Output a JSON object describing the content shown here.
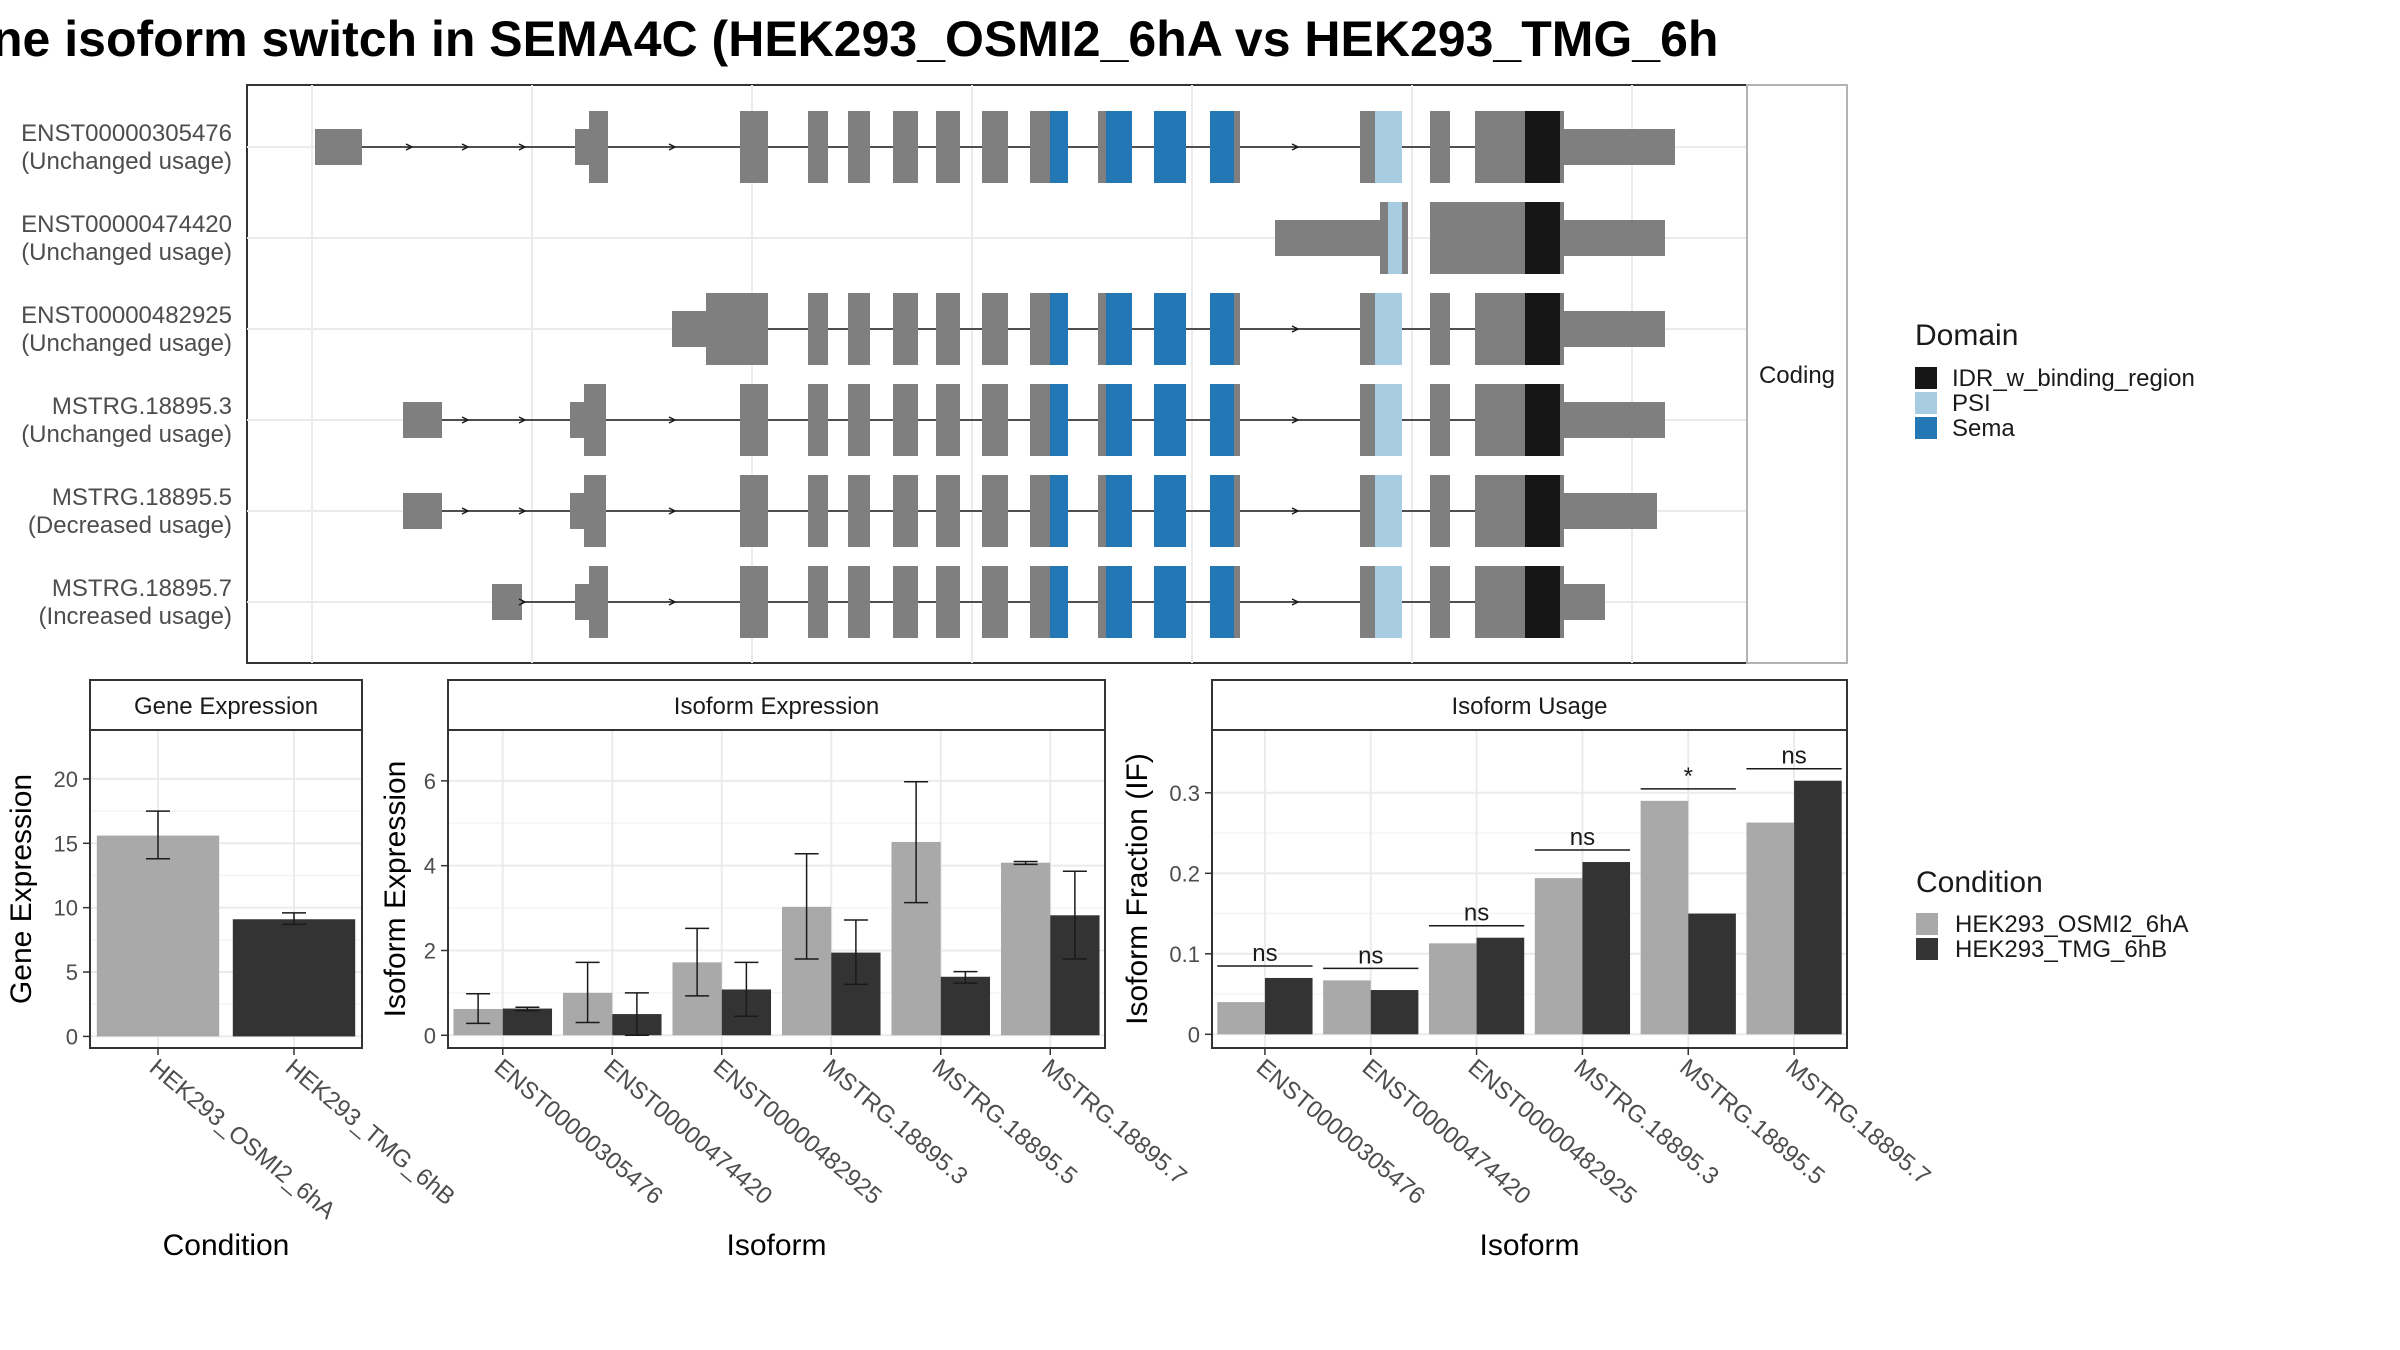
{
  "title": "ne isoform switch in SEMA4C (HEK293_OSMI2_6hA vs HEK293_TMG_6h",
  "colors": {
    "sema": "#2277b4",
    "psi": "#a8cde3",
    "idr": "#161616",
    "exon": "#7f7f7f",
    "cond1": "#a9a9a9",
    "cond2": "#333333",
    "panel_border": "#333333",
    "strip_bg": "#ffffff",
    "grid": "#ebebeb"
  },
  "structure": {
    "strip_label": "Coding",
    "transcripts": [
      {
        "id": "ENST00000305476",
        "status": "(Unchanged usage)"
      },
      {
        "id": "ENST00000474420",
        "status": "(Unchanged usage)"
      },
      {
        "id": "ENST00000482925",
        "status": "(Unchanged usage)"
      },
      {
        "id": "MSTRG.18895.3",
        "status": "(Unchanged usage)"
      },
      {
        "id": "MSTRG.18895.5",
        "status": "(Decreased usage)"
      },
      {
        "id": "MSTRG.18895.7",
        "status": "(Increased usage)"
      }
    ]
  },
  "domain_legend": {
    "title": "Domain",
    "items": [
      {
        "label": "IDR_w_binding_region",
        "color": "#161616"
      },
      {
        "label": "PSI",
        "color": "#a8cde3"
      },
      {
        "label": "Sema",
        "color": "#2277b4"
      }
    ]
  },
  "condition_legend": {
    "title": "Condition",
    "items": [
      {
        "label": "HEK293_OSMI2_6hA",
        "color": "#a9a9a9"
      },
      {
        "label": "HEK293_TMG_6hB",
        "color": "#333333"
      }
    ]
  },
  "chart_data": [
    {
      "type": "bar",
      "title": "Gene Expression",
      "xlabel": "Condition",
      "ylabel": "Gene Expression",
      "categories": [
        "HEK293_OSMI2_6hA",
        "HEK293_TMG_6hB"
      ],
      "values": [
        15.6,
        9.1
      ],
      "errors": [
        [
          13.8,
          17.5
        ],
        [
          8.7,
          9.6
        ]
      ],
      "yticks": [
        0,
        5,
        10,
        15,
        20
      ],
      "ylim": [
        -0.9,
        23.8
      ],
      "grid": true
    },
    {
      "type": "bar",
      "title": "Isoform Expression",
      "xlabel": "Isoform",
      "ylabel": "Isoform Expression",
      "categories": [
        "ENST00000305476",
        "ENST00000474420",
        "ENST00000482925",
        "MSTRG.18895.3",
        "MSTRG.18895.5",
        "MSTRG.18895.7"
      ],
      "series": [
        {
          "name": "HEK293_OSMI2_6hA",
          "values": [
            0.62,
            1.0,
            1.72,
            3.03,
            4.56,
            4.07
          ],
          "errors": [
            [
              0.28,
              0.98
            ],
            [
              0.3,
              1.72
            ],
            [
              0.93,
              2.52
            ],
            [
              1.8,
              4.28
            ],
            [
              3.13,
              5.98
            ],
            [
              4.03,
              4.1
            ]
          ]
        },
        {
          "name": "HEK293_TMG_6hB",
          "values": [
            0.63,
            0.5,
            1.08,
            1.95,
            1.38,
            2.83
          ],
          "errors": [
            [
              0.58,
              0.66
            ],
            [
              0.0,
              1.0
            ],
            [
              0.45,
              1.72
            ],
            [
              1.2,
              2.72
            ],
            [
              1.23,
              1.5
            ],
            [
              1.8,
              3.87
            ]
          ]
        }
      ],
      "yticks": [
        0,
        2,
        4,
        6
      ],
      "ylim": [
        -0.3,
        7.2
      ],
      "grid": true
    },
    {
      "type": "bar",
      "title": "Isoform Usage",
      "xlabel": "Isoform",
      "ylabel": "Isoform Fraction (IF)",
      "categories": [
        "ENST00000305476",
        "ENST00000474420",
        "ENST00000482925",
        "MSTRG.18895.3",
        "MSTRG.18895.5",
        "MSTRG.18895.7"
      ],
      "series": [
        {
          "name": "HEK293_OSMI2_6hA",
          "values": [
            0.04,
            0.067,
            0.113,
            0.194,
            0.29,
            0.263
          ]
        },
        {
          "name": "HEK293_TMG_6hB",
          "values": [
            0.07,
            0.055,
            0.12,
            0.214,
            0.15,
            0.315
          ]
        }
      ],
      "significance": [
        "ns",
        "ns",
        "ns",
        "ns",
        "*",
        "ns"
      ],
      "yticks": [
        0.0,
        0.1,
        0.2,
        0.3
      ],
      "ylim": [
        -0.017,
        0.378
      ],
      "grid": true
    }
  ]
}
